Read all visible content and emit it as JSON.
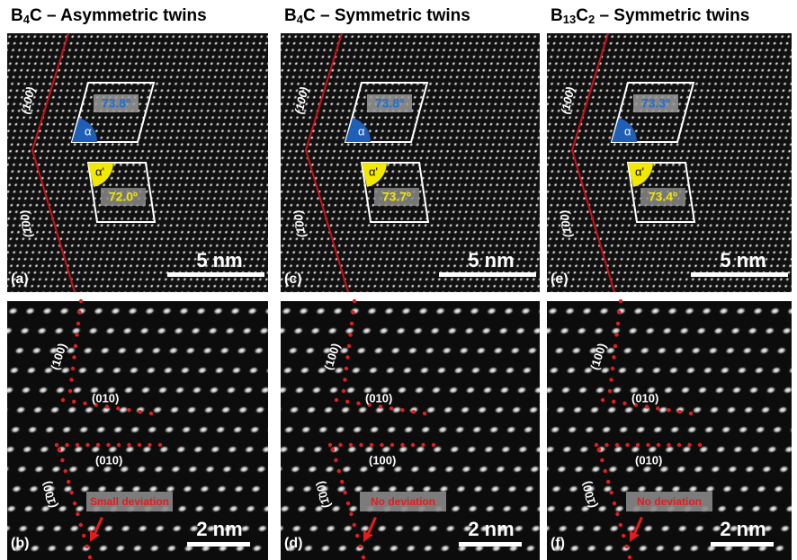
{
  "columns": [
    {
      "title": [
        {
          "text": "B"
        },
        {
          "text": "4",
          "sub": true
        },
        {
          "text": "C –   Asymmetric twins"
        }
      ],
      "top": {
        "label": "(a)",
        "scale": "5 nm",
        "planes": [
          "(100)",
          "(1̄00)"
        ],
        "angles": [
          {
            "symbol": "α",
            "value": "73.8º"
          },
          {
            "symbol": "α'",
            "value": "72.0º"
          }
        ]
      },
      "bottom": {
        "label": "(b)",
        "scale": "2 nm",
        "planes": [
          "(100)",
          "(010)",
          "(010)",
          "(1̄00)"
        ],
        "note": "Small deviation"
      }
    },
    {
      "title": [
        {
          "text": "B"
        },
        {
          "text": "4",
          "sub": true
        },
        {
          "text": "C – Symmetric twins"
        }
      ],
      "top": {
        "label": "(c)",
        "scale": "5 nm",
        "planes": [
          "(100)",
          "(1̄00)"
        ],
        "angles": [
          {
            "symbol": "α",
            "value": "73.8º"
          },
          {
            "symbol": "α'",
            "value": "73.7º"
          }
        ]
      },
      "bottom": {
        "label": "(d)",
        "scale": "2 nm",
        "planes": [
          "(100)",
          "(010)",
          "(100)",
          "(1̄00)"
        ],
        "note": "No deviation"
      }
    },
    {
      "title": [
        {
          "text": "B"
        },
        {
          "text": "13",
          "sub": true
        },
        {
          "text": "C"
        },
        {
          "text": "2",
          "sub": true
        },
        {
          "text": " – Symmetric twins"
        }
      ],
      "top": {
        "label": "(e)",
        "scale": "5 nm",
        "planes": [
          "(100)",
          "(1̄00)"
        ],
        "angles": [
          {
            "symbol": "α",
            "value": "73.3º"
          },
          {
            "symbol": "α'",
            "value": "73.4º"
          }
        ]
      },
      "bottom": {
        "label": "(f)",
        "scale": "2 nm",
        "planes": [
          "(100)",
          "(010)",
          "(010)",
          "(1̄00)"
        ],
        "note": "No deviation"
      }
    }
  ]
}
